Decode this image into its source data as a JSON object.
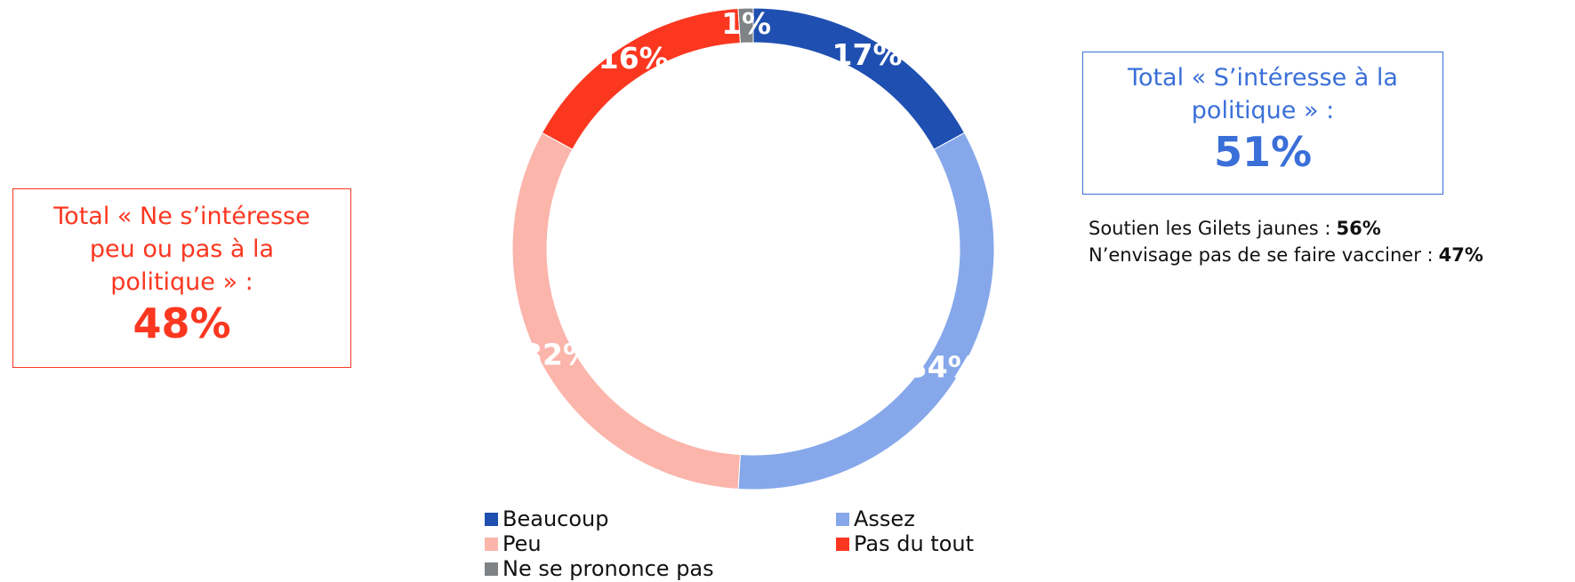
{
  "chart_data": {
    "type": "donut",
    "categories": [
      "Beaucoup",
      "Assez",
      "Peu",
      "Pas du tout",
      "Ne se prononce pas"
    ],
    "values": [
      17,
      34,
      32,
      16,
      1
    ],
    "value_labels": [
      "17%",
      "34%",
      "32%",
      "16%",
      "1%"
    ],
    "colors": [
      "#1f4fb0",
      "#86a8ea",
      "#fbb5ab",
      "#fb3720",
      "#7f8385"
    ],
    "legend": "bottom"
  },
  "annotations": [
    {
      "title": "Total « Ne s’intéresse peu ou pas à la politique » :",
      "value": "48%",
      "color": "#fb3720"
    },
    {
      "title": "Total « S’intéresse à la politique » :",
      "value": "51%",
      "color": "#3a6fd8"
    }
  ],
  "notes": [
    {
      "text": "Soutien les Gilets jaunes :",
      "value": "56%"
    },
    {
      "text": "N’envisage pas de se faire vacciner :",
      "value": "47%"
    }
  ]
}
